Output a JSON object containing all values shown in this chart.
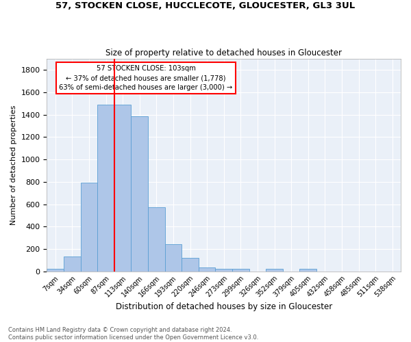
{
  "title1": "57, STOCKEN CLOSE, HUCCLECOTE, GLOUCESTER, GL3 3UL",
  "title2": "Size of property relative to detached houses in Gloucester",
  "xlabel": "Distribution of detached houses by size in Gloucester",
  "ylabel": "Number of detached properties",
  "bar_color": "#aec6e8",
  "bar_edge_color": "#5a9fd4",
  "bg_color": "#eaf0f8",
  "grid_color": "white",
  "categories": [
    "7sqm",
    "34sqm",
    "60sqm",
    "87sqm",
    "113sqm",
    "140sqm",
    "166sqm",
    "193sqm",
    "220sqm",
    "246sqm",
    "273sqm",
    "299sqm",
    "326sqm",
    "352sqm",
    "379sqm",
    "405sqm",
    "432sqm",
    "458sqm",
    "485sqm",
    "511sqm",
    "538sqm"
  ],
  "values": [
    20,
    135,
    795,
    1490,
    1490,
    1385,
    575,
    245,
    120,
    35,
    25,
    20,
    0,
    20,
    0,
    20,
    0,
    0,
    0,
    0,
    0
  ],
  "red_line_index": 3.5,
  "annotation_line1": "57 STOCKEN CLOSE: 103sqm",
  "annotation_line2": "← 37% of detached houses are smaller (1,778)",
  "annotation_line3": "63% of semi-detached houses are larger (3,000) →",
  "footer_text": "Contains HM Land Registry data © Crown copyright and database right 2024.\nContains public sector information licensed under the Open Government Licence v3.0.",
  "ylim": [
    0,
    1900
  ],
  "yticks": [
    0,
    200,
    400,
    600,
    800,
    1000,
    1200,
    1400,
    1600,
    1800
  ]
}
